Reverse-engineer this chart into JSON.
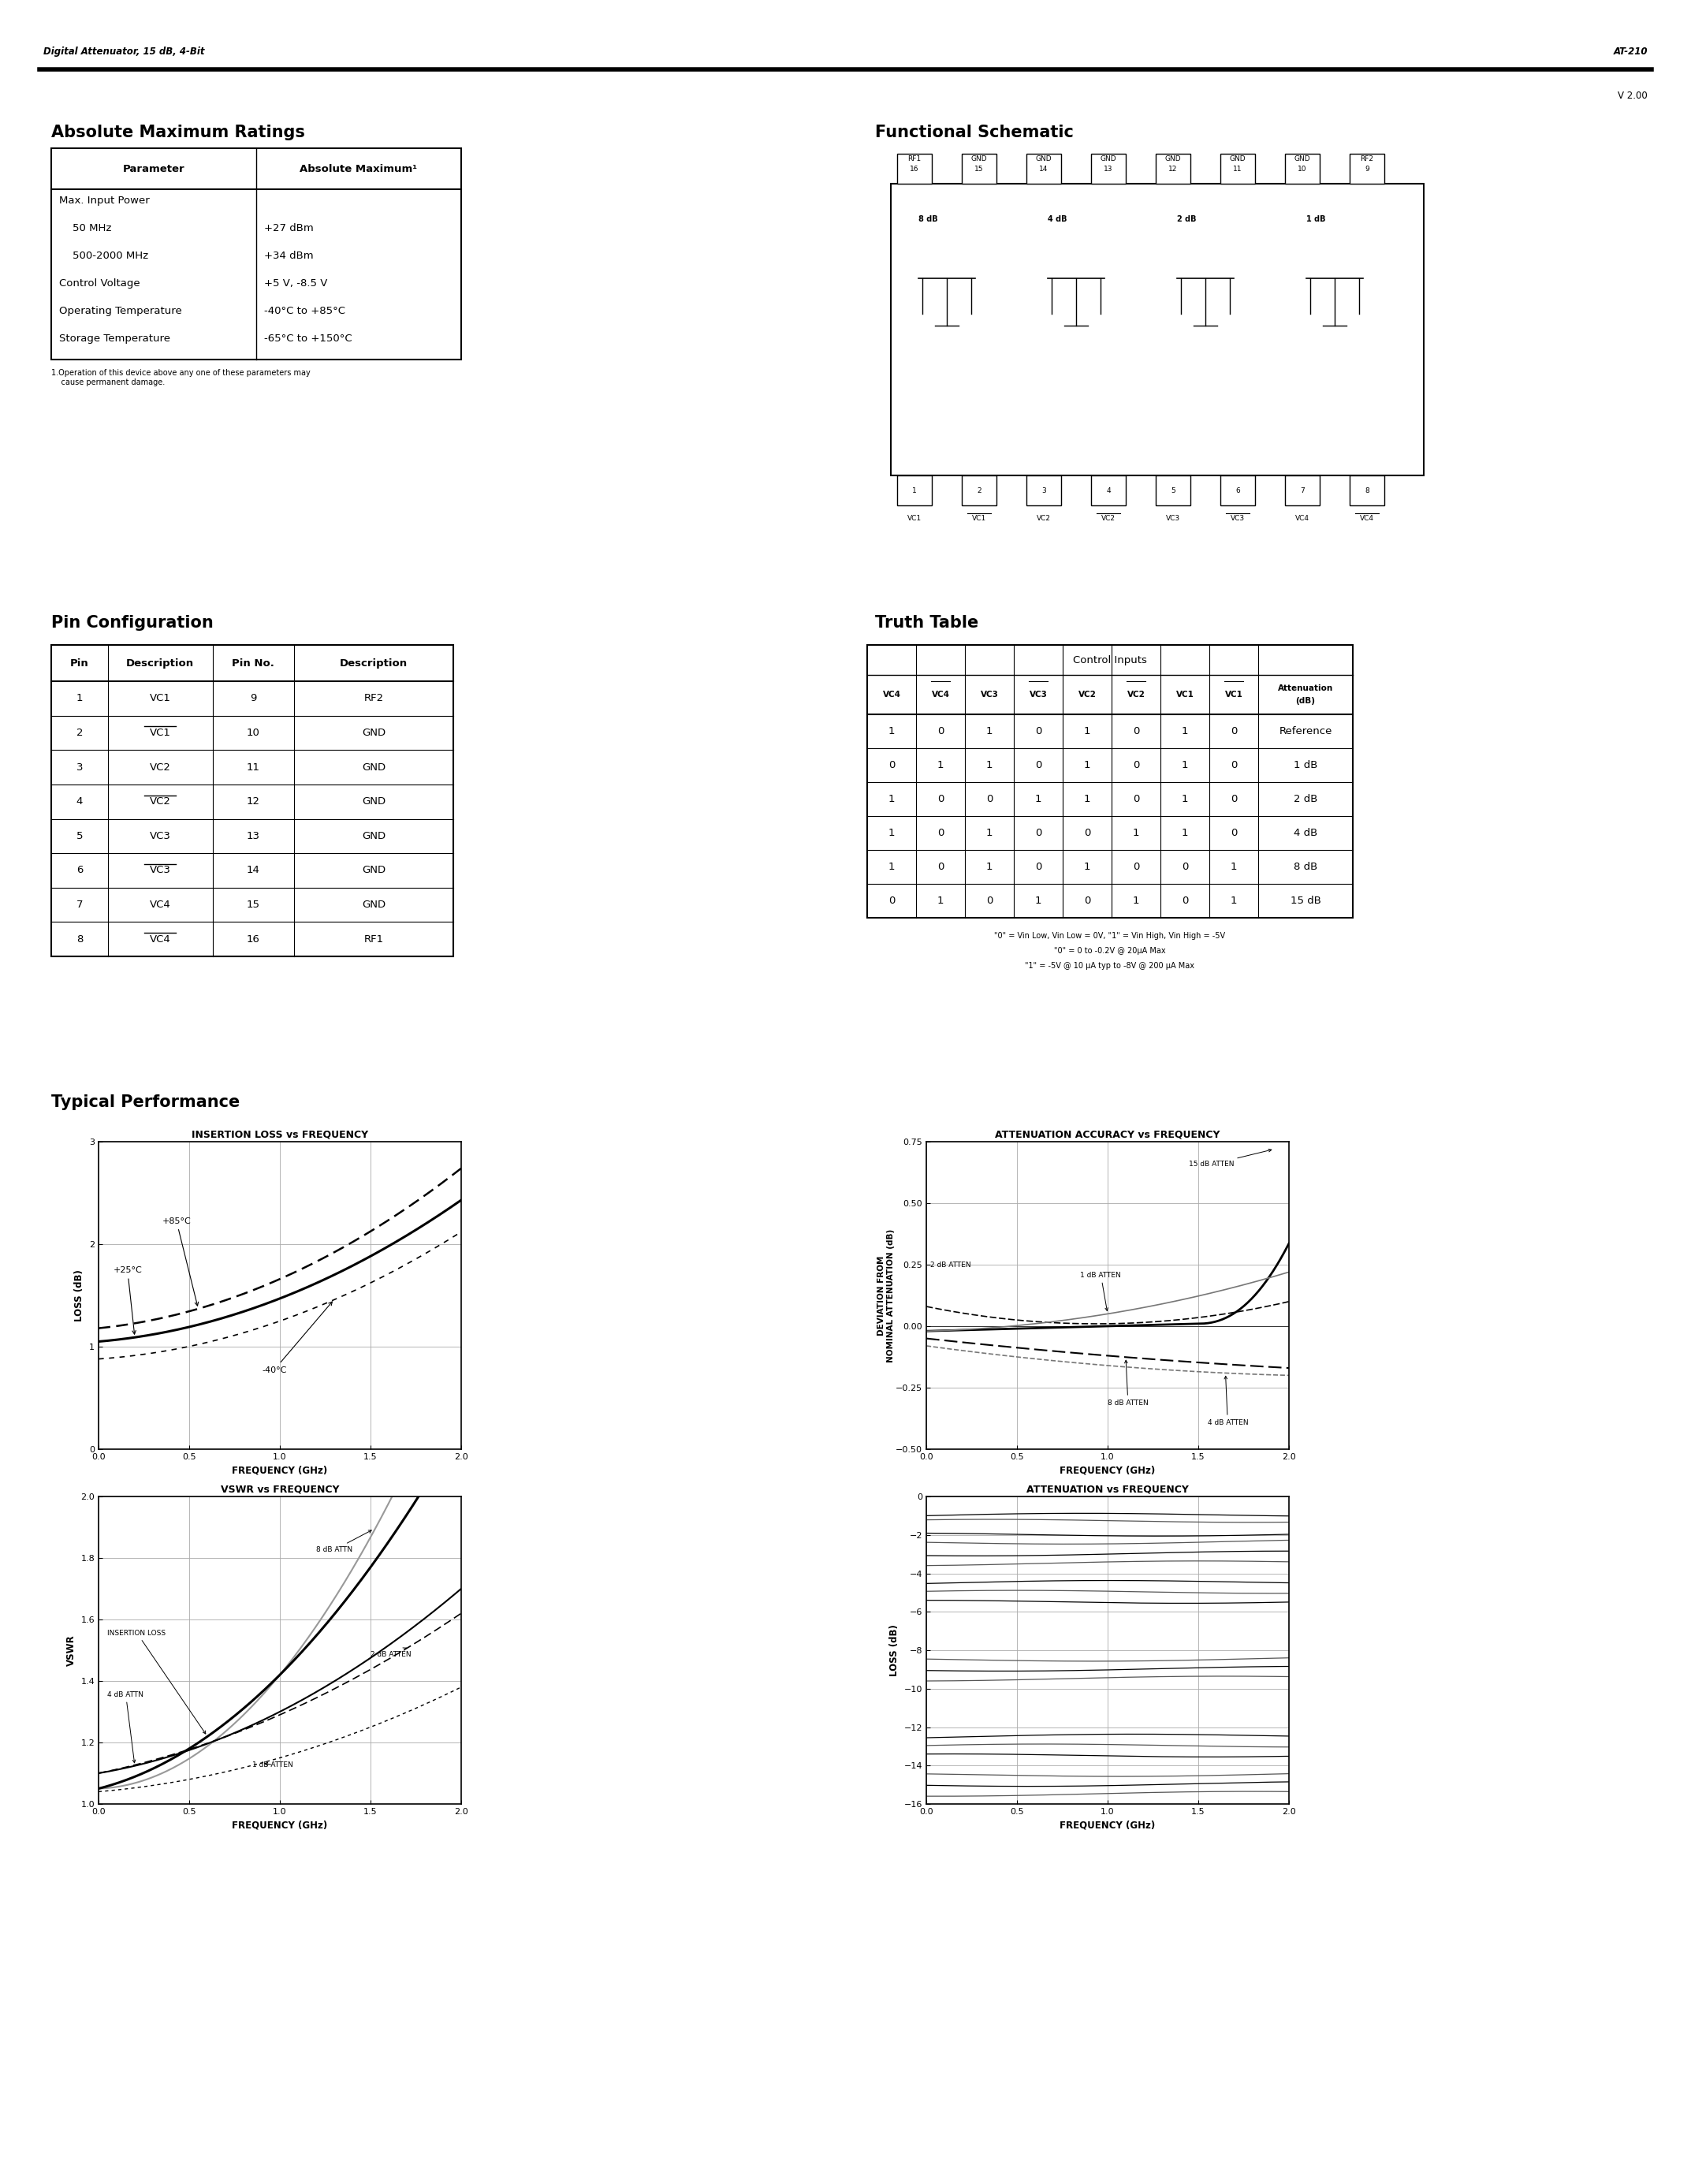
{
  "page_header_left": "Digital Attenuator, 15 dB, 4-Bit",
  "page_header_right": "AT-210",
  "version": "V 2.00",
  "section1_title": "Absolute Maximum Ratings",
  "abs_max_headers": [
    "Parameter",
    "Absolute Maximum¹"
  ],
  "abs_max_footnote": "1.Operation of this device above any one of these parameters may\n    cause permanent damage.",
  "section2_title": "Pin Configuration",
  "pin_config_headers": [
    "Pin",
    "Description",
    "Pin No.",
    "Description"
  ],
  "pin_config_rows": [
    [
      "1",
      "VC1",
      "9",
      "RF2"
    ],
    [
      "2",
      "VC1",
      "10",
      "GND"
    ],
    [
      "3",
      "VC2",
      "11",
      "GND"
    ],
    [
      "4",
      "VC2",
      "12",
      "GND"
    ],
    [
      "5",
      "VC3",
      "13",
      "GND"
    ],
    [
      "6",
      "VC3",
      "14",
      "GND"
    ],
    [
      "7",
      "VC4",
      "15",
      "GND"
    ],
    [
      "8",
      "VC4",
      "16",
      "RF1"
    ]
  ],
  "pin_overline": [
    false,
    true,
    false,
    true,
    false,
    true,
    false,
    true
  ],
  "section3_title": "Functional Schematic",
  "section4_title": "Truth Table",
  "truth_table_header1": "Control Inputs",
  "truth_table_col_headers": [
    "VC4",
    "VC4",
    "VC3",
    "VC3",
    "VC2",
    "VC2",
    "VC1",
    "VC1",
    "Attenuation\n(dB)"
  ],
  "truth_table_col_overline": [
    false,
    true,
    false,
    true,
    false,
    true,
    false,
    true,
    false
  ],
  "truth_table_rows": [
    [
      "1",
      "0",
      "1",
      "0",
      "1",
      "0",
      "1",
      "0",
      "Reference"
    ],
    [
      "0",
      "1",
      "1",
      "0",
      "1",
      "0",
      "1",
      "0",
      "1 dB"
    ],
    [
      "1",
      "0",
      "0",
      "1",
      "1",
      "0",
      "1",
      "0",
      "2 dB"
    ],
    [
      "1",
      "0",
      "1",
      "0",
      "0",
      "1",
      "1",
      "0",
      "4 dB"
    ],
    [
      "1",
      "0",
      "1",
      "0",
      "1",
      "0",
      "0",
      "1",
      "8 dB"
    ],
    [
      "0",
      "1",
      "0",
      "1",
      "0",
      "1",
      "0",
      "1",
      "15 dB"
    ]
  ],
  "truth_table_footnotes": [
    "\"0\" = Vin Low, Vin Low = 0V, \"1\" = Vin High, Vin High = -5V",
    "\"0\" = 0 to -0.2V @ 20μA Max",
    "\"1\" = -5V @ 10 μA typ to -8V @ 200 μA Max"
  ],
  "section5_title": "Typical Performance",
  "graph1_title": "INSERTION LOSS vs FREQUENCY",
  "graph1_xlabel": "FREQUENCY (GHz)",
  "graph1_ylabel": "LOSS (dB)",
  "graph1_xlim": [
    0,
    2.0
  ],
  "graph1_ylim": [
    0,
    3.0
  ],
  "graph1_xticks": [
    0,
    0.5,
    1.0,
    1.5,
    2.0
  ],
  "graph1_yticks": [
    0,
    1.0,
    2.0,
    3.0
  ],
  "graph2_title": "ATTENUATION ACCURACY vs FREQUENCY",
  "graph2_xlabel": "FREQUENCY (GHz)",
  "graph2_ylabel": "DEVIATION FROM\nNOMINAL ATTENUATION (dB)",
  "graph2_xlim": [
    0.0,
    2.0
  ],
  "graph2_ylim": [
    -0.5,
    0.75
  ],
  "graph2_xticks": [
    0.0,
    0.5,
    1.0,
    1.5,
    2.0
  ],
  "graph2_yticks": [
    -0.5,
    -0.25,
    0,
    0.25,
    0.5,
    0.75
  ],
  "graph3_title": "VSWR vs FREQUENCY",
  "graph3_xlabel": "FREQUENCY (GHz)",
  "graph3_ylabel": "VSWR",
  "graph3_xlim": [
    0.0,
    2.0
  ],
  "graph3_ylim": [
    1.0,
    2.0
  ],
  "graph3_xticks": [
    0.0,
    0.5,
    1.0,
    1.5,
    2.0
  ],
  "graph3_yticks": [
    1.0,
    1.2,
    1.4,
    1.6,
    1.8,
    2.0
  ],
  "graph4_title": "ATTENUATION vs FREQUENCY",
  "graph4_xlabel": "FREQUENCY (GHz)",
  "graph4_ylabel": "LOSS (dB)",
  "graph4_xlim": [
    0.0,
    2.0
  ],
  "graph4_ylim": [
    -16,
    0
  ],
  "graph4_xticks": [
    0.0,
    0.5,
    1.0,
    1.5,
    2.0
  ],
  "graph4_yticks": [
    -16,
    -14,
    -12,
    -10,
    -8,
    -6,
    -4,
    -2,
    0
  ],
  "bg_color": "#ffffff",
  "text_color": "#000000",
  "grid_color": "#aaaaaa"
}
